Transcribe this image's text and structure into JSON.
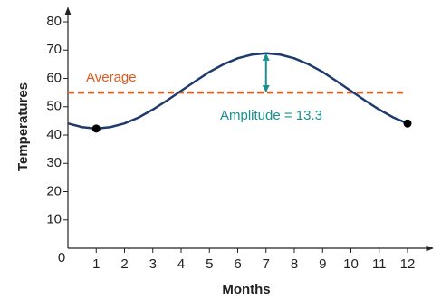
{
  "chart_data": {
    "type": "line",
    "x_label": "Months",
    "y_label": "Temperatures",
    "xlim": [
      0,
      12.8
    ],
    "ylim": [
      0,
      85
    ],
    "xticks": [
      0,
      1,
      2,
      3,
      4,
      5,
      6,
      7,
      8,
      9,
      10,
      11,
      12
    ],
    "yticks": [
      10,
      20,
      30,
      40,
      50,
      60,
      70,
      80
    ],
    "x": [
      0,
      0.5,
      1,
      1.5,
      2,
      2.5,
      3,
      3.5,
      4,
      4.5,
      5,
      5.5,
      6,
      6.5,
      7,
      7.5,
      8,
      8.5,
      9,
      9.5,
      10,
      10.5,
      11,
      11.5,
      12
    ],
    "series": [
      {
        "color": "#1f3b6e",
        "values": [
          44.1,
          42.8,
          42.3,
          42.8,
          44.1,
          46.2,
          49.0,
          52.2,
          55.6,
          59.0,
          62.3,
          65.0,
          67.1,
          68.4,
          68.9,
          68.4,
          67.1,
          65.0,
          62.3,
          59.0,
          55.6,
          52.2,
          49.0,
          46.2,
          44.1
        ]
      }
    ],
    "points": {
      "x": [
        1,
        12
      ],
      "y": [
        42.3,
        44.1
      ],
      "color": "#000000"
    },
    "average": {
      "label": "Average",
      "value": 55,
      "color": "#e05a1e"
    },
    "amplitude": {
      "label": "Amplitude = 13.3",
      "color": "#1a8f8f"
    }
  }
}
